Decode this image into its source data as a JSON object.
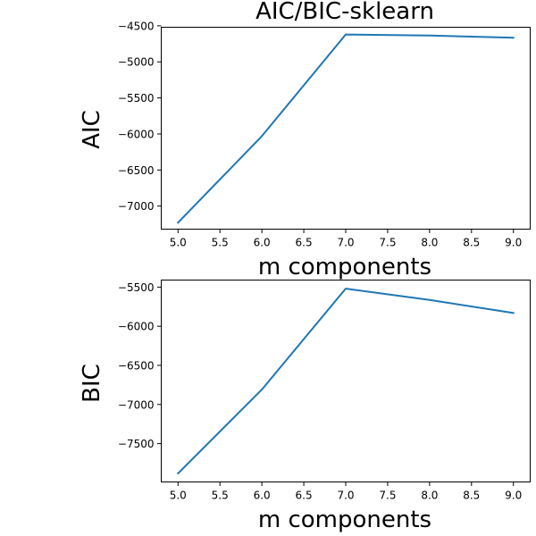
{
  "chart_data": [
    {
      "type": "line",
      "title": "AIC/BIC-sklearn",
      "xlabel": "m components",
      "ylabel": "AIC",
      "x": [
        5,
        6,
        7,
        8,
        9
      ],
      "series": [
        {
          "values": [
            -7230,
            -6030,
            -4620,
            -4635,
            -4665
          ],
          "color": "#1f77b4"
        }
      ],
      "xlim": [
        4.8,
        9.2
      ],
      "ylim": [
        -7320,
        -4520
      ],
      "xticks": [
        5.0,
        5.5,
        6.0,
        6.5,
        7.0,
        7.5,
        8.0,
        8.5,
        9.0
      ],
      "xtick_labels": [
        "5.0",
        "5.5",
        "6.0",
        "6.5",
        "7.0",
        "7.5",
        "8.0",
        "8.5",
        "9.0"
      ],
      "yticks": [
        -7000,
        -6500,
        -6000,
        -5500,
        -5000,
        -4500
      ],
      "ytick_labels": [
        "−7000",
        "−6500",
        "−6000",
        "−5500",
        "−5000",
        "−4500"
      ],
      "grid": false,
      "legend": false
    },
    {
      "type": "line",
      "title": "",
      "xlabel": "m components",
      "ylabel": "BIC",
      "x": [
        5,
        6,
        7,
        8,
        9
      ],
      "series": [
        {
          "values": [
            -7880,
            -6810,
            -5520,
            -5665,
            -5830
          ],
          "color": "#1f77b4"
        }
      ],
      "xlim": [
        4.8,
        9.2
      ],
      "ylim": [
        -7990,
        -5410
      ],
      "xticks": [
        5.0,
        5.5,
        6.0,
        6.5,
        7.0,
        7.5,
        8.0,
        8.5,
        9.0
      ],
      "xtick_labels": [
        "5.0",
        "5.5",
        "6.0",
        "6.5",
        "7.0",
        "7.5",
        "8.0",
        "8.5",
        "9.0"
      ],
      "yticks": [
        -7500,
        -7000,
        -6500,
        -6000,
        -5500
      ],
      "ytick_labels": [
        "−7500",
        "−7000",
        "−6500",
        "−6000",
        "−5500"
      ],
      "grid": false,
      "legend": false
    }
  ]
}
